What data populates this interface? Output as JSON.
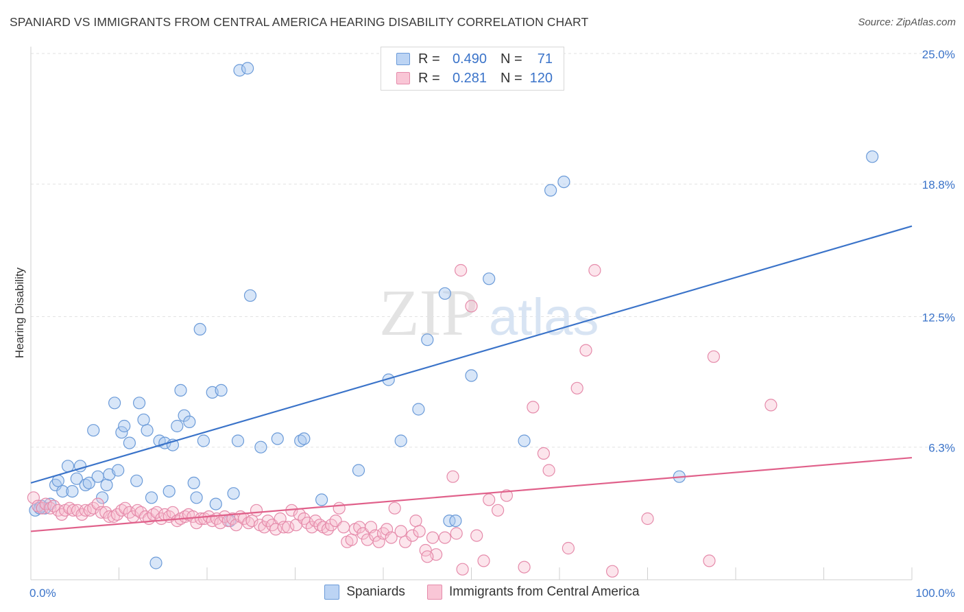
{
  "title": "SPANIARD VS IMMIGRANTS FROM CENTRAL AMERICA HEARING DISABILITY CORRELATION CHART",
  "source": "Source: ZipAtlas.com",
  "watermark": {
    "zip": "ZIP",
    "atlas": "atlas"
  },
  "legend": {
    "r_label": "R =",
    "n_label": "N =",
    "rows": [
      {
        "r": "0.490",
        "n": "71",
        "fill": "#bcd4f4",
        "stroke": "#6a9ad8"
      },
      {
        "r": "0.281",
        "n": "120",
        "fill": "#f9c6d6",
        "stroke": "#e58aaa"
      }
    ]
  },
  "chart_data": {
    "type": "scatter",
    "ylabel": "Hearing Disability",
    "xlim": [
      0,
      100
    ],
    "ylim": [
      0,
      25
    ],
    "x_tick_labels": [
      "0.0%",
      "100.0%"
    ],
    "y_ticks": [
      {
        "value": 6.3,
        "label": "6.3%"
      },
      {
        "value": 12.5,
        "label": "12.5%"
      },
      {
        "value": 18.8,
        "label": "18.8%"
      },
      {
        "value": 25.0,
        "label": "25.0%"
      }
    ],
    "grid": true,
    "series": [
      {
        "name": "Spaniards",
        "color": "#3a73c9",
        "fill": "rgba(168,199,240,0.45)",
        "stroke": "#6a9ad8",
        "trend": {
          "x": [
            0,
            100
          ],
          "y": [
            4.6,
            16.8
          ]
        },
        "points": [
          [
            0.5,
            3.3
          ],
          [
            1.2,
            3.5
          ],
          [
            1.6,
            3.4
          ],
          [
            2.2,
            3.6
          ],
          [
            2.8,
            4.5
          ],
          [
            3.1,
            4.7
          ],
          [
            3.6,
            4.2
          ],
          [
            4.2,
            5.4
          ],
          [
            4.7,
            4.2
          ],
          [
            5.2,
            4.8
          ],
          [
            5.6,
            5.4
          ],
          [
            6.2,
            4.5
          ],
          [
            6.6,
            4.6
          ],
          [
            7.1,
            7.1
          ],
          [
            7.6,
            4.9
          ],
          [
            8.1,
            3.9
          ],
          [
            8.6,
            4.5
          ],
          [
            8.9,
            5.0
          ],
          [
            9.5,
            8.4
          ],
          [
            9.9,
            5.2
          ],
          [
            10.3,
            7.0
          ],
          [
            10.6,
            7.3
          ],
          [
            11.2,
            6.5
          ],
          [
            12.0,
            4.7
          ],
          [
            12.3,
            8.4
          ],
          [
            12.8,
            7.6
          ],
          [
            13.2,
            7.1
          ],
          [
            13.7,
            3.9
          ],
          [
            14.2,
            0.8
          ],
          [
            14.6,
            6.6
          ],
          [
            15.2,
            6.5
          ],
          [
            15.7,
            4.2
          ],
          [
            16.1,
            6.4
          ],
          [
            16.6,
            7.3
          ],
          [
            17.0,
            9.0
          ],
          [
            17.4,
            7.8
          ],
          [
            18.0,
            7.5
          ],
          [
            18.5,
            4.6
          ],
          [
            18.8,
            3.9
          ],
          [
            19.2,
            11.9
          ],
          [
            19.6,
            6.6
          ],
          [
            20.6,
            8.9
          ],
          [
            21.0,
            3.6
          ],
          [
            21.6,
            9.0
          ],
          [
            22.6,
            2.8
          ],
          [
            23.0,
            4.1
          ],
          [
            23.5,
            6.6
          ],
          [
            23.7,
            24.2
          ],
          [
            24.6,
            24.3
          ],
          [
            24.9,
            13.5
          ],
          [
            26.1,
            6.3
          ],
          [
            28.0,
            6.7
          ],
          [
            30.6,
            6.6
          ],
          [
            31.0,
            6.7
          ],
          [
            33.0,
            3.8
          ],
          [
            37.2,
            5.2
          ],
          [
            40.6,
            9.5
          ],
          [
            42.0,
            6.6
          ],
          [
            44.0,
            8.1
          ],
          [
            45.0,
            11.4
          ],
          [
            47.0,
            13.6
          ],
          [
            47.5,
            2.8
          ],
          [
            48.2,
            2.8
          ],
          [
            50.0,
            9.7
          ],
          [
            52.0,
            14.3
          ],
          [
            56.0,
            6.6
          ],
          [
            59.0,
            18.5
          ],
          [
            60.5,
            18.9
          ],
          [
            73.6,
            4.9
          ],
          [
            95.5,
            20.1
          ],
          [
            1.0,
            3.4
          ]
        ]
      },
      {
        "name": "Immigrants from Central America",
        "color": "#e0608a",
        "fill": "rgba(248,190,208,0.40)",
        "stroke": "#e58aaa",
        "trend": {
          "x": [
            0,
            100
          ],
          "y": [
            2.3,
            5.8
          ]
        },
        "points": [
          [
            0.3,
            3.9
          ],
          [
            0.8,
            3.5
          ],
          [
            1.3,
            3.4
          ],
          [
            1.7,
            3.6
          ],
          [
            2.2,
            3.4
          ],
          [
            2.6,
            3.5
          ],
          [
            3.1,
            3.3
          ],
          [
            3.5,
            3.1
          ],
          [
            3.9,
            3.3
          ],
          [
            4.4,
            3.4
          ],
          [
            4.8,
            3.3
          ],
          [
            5.3,
            3.3
          ],
          [
            5.8,
            3.1
          ],
          [
            6.2,
            3.3
          ],
          [
            6.7,
            3.3
          ],
          [
            7.1,
            3.4
          ],
          [
            7.6,
            3.6
          ],
          [
            8.0,
            3.2
          ],
          [
            8.5,
            3.2
          ],
          [
            8.9,
            3.0
          ],
          [
            9.4,
            3.0
          ],
          [
            9.8,
            3.1
          ],
          [
            10.3,
            3.3
          ],
          [
            10.7,
            3.4
          ],
          [
            11.2,
            3.2
          ],
          [
            11.6,
            3.0
          ],
          [
            12.1,
            3.3
          ],
          [
            12.5,
            3.2
          ],
          [
            13.0,
            3.0
          ],
          [
            13.4,
            2.9
          ],
          [
            13.9,
            3.1
          ],
          [
            14.3,
            3.2
          ],
          [
            14.8,
            2.9
          ],
          [
            15.2,
            3.1
          ],
          [
            15.7,
            3.0
          ],
          [
            16.1,
            3.2
          ],
          [
            16.6,
            2.8
          ],
          [
            17.0,
            2.9
          ],
          [
            17.5,
            3.0
          ],
          [
            17.9,
            3.1
          ],
          [
            18.4,
            3.0
          ],
          [
            18.8,
            2.7
          ],
          [
            19.3,
            2.9
          ],
          [
            19.7,
            2.9
          ],
          [
            20.2,
            3.0
          ],
          [
            20.6,
            2.8
          ],
          [
            21.1,
            2.9
          ],
          [
            21.5,
            2.7
          ],
          [
            22.0,
            3.0
          ],
          [
            22.4,
            2.8
          ],
          [
            22.9,
            2.9
          ],
          [
            23.3,
            2.6
          ],
          [
            23.8,
            3.0
          ],
          [
            24.2,
            2.9
          ],
          [
            24.7,
            2.7
          ],
          [
            25.1,
            2.8
          ],
          [
            25.6,
            3.3
          ],
          [
            26.0,
            2.6
          ],
          [
            26.5,
            2.5
          ],
          [
            26.9,
            2.8
          ],
          [
            27.4,
            2.6
          ],
          [
            27.8,
            2.4
          ],
          [
            28.3,
            2.9
          ],
          [
            28.7,
            2.5
          ],
          [
            29.2,
            2.5
          ],
          [
            29.6,
            3.3
          ],
          [
            30.1,
            2.6
          ],
          [
            30.5,
            3.1
          ],
          [
            31.0,
            2.9
          ],
          [
            31.4,
            2.7
          ],
          [
            31.9,
            2.5
          ],
          [
            32.3,
            2.8
          ],
          [
            32.8,
            2.6
          ],
          [
            33.2,
            2.5
          ],
          [
            33.7,
            2.4
          ],
          [
            34.1,
            2.6
          ],
          [
            34.6,
            2.8
          ],
          [
            35.0,
            3.4
          ],
          [
            35.5,
            2.5
          ],
          [
            35.9,
            1.8
          ],
          [
            36.4,
            1.9
          ],
          [
            36.8,
            2.4
          ],
          [
            37.3,
            2.5
          ],
          [
            37.7,
            2.2
          ],
          [
            38.2,
            1.9
          ],
          [
            38.6,
            2.5
          ],
          [
            39.1,
            2.1
          ],
          [
            39.5,
            1.8
          ],
          [
            40.0,
            2.2
          ],
          [
            40.4,
            2.4
          ],
          [
            40.9,
            2.0
          ],
          [
            41.3,
            3.4
          ],
          [
            42.0,
            2.3
          ],
          [
            42.5,
            1.8
          ],
          [
            43.3,
            2.1
          ],
          [
            43.7,
            2.8
          ],
          [
            44.1,
            2.3
          ],
          [
            44.8,
            1.4
          ],
          [
            45.6,
            2.0
          ],
          [
            46.0,
            1.2
          ],
          [
            47.0,
            2.0
          ],
          [
            47.9,
            4.9
          ],
          [
            48.3,
            2.2
          ],
          [
            48.8,
            14.7
          ],
          [
            49.0,
            0.5
          ],
          [
            50.0,
            13.0
          ],
          [
            50.6,
            2.1
          ],
          [
            51.4,
            0.9
          ],
          [
            52.0,
            3.8
          ],
          [
            53.0,
            3.3
          ],
          [
            54.0,
            4.0
          ],
          [
            56.0,
            0.6
          ],
          [
            57.0,
            8.2
          ],
          [
            58.2,
            6.0
          ],
          [
            58.8,
            5.2
          ],
          [
            61.0,
            1.5
          ],
          [
            62.0,
            9.1
          ],
          [
            63.0,
            10.9
          ],
          [
            64.0,
            14.7
          ],
          [
            66.0,
            0.4
          ],
          [
            70.0,
            2.9
          ],
          [
            77.0,
            0.9
          ],
          [
            77.5,
            10.6
          ],
          [
            84.0,
            8.3
          ],
          [
            45.0,
            1.1
          ]
        ]
      }
    ]
  }
}
